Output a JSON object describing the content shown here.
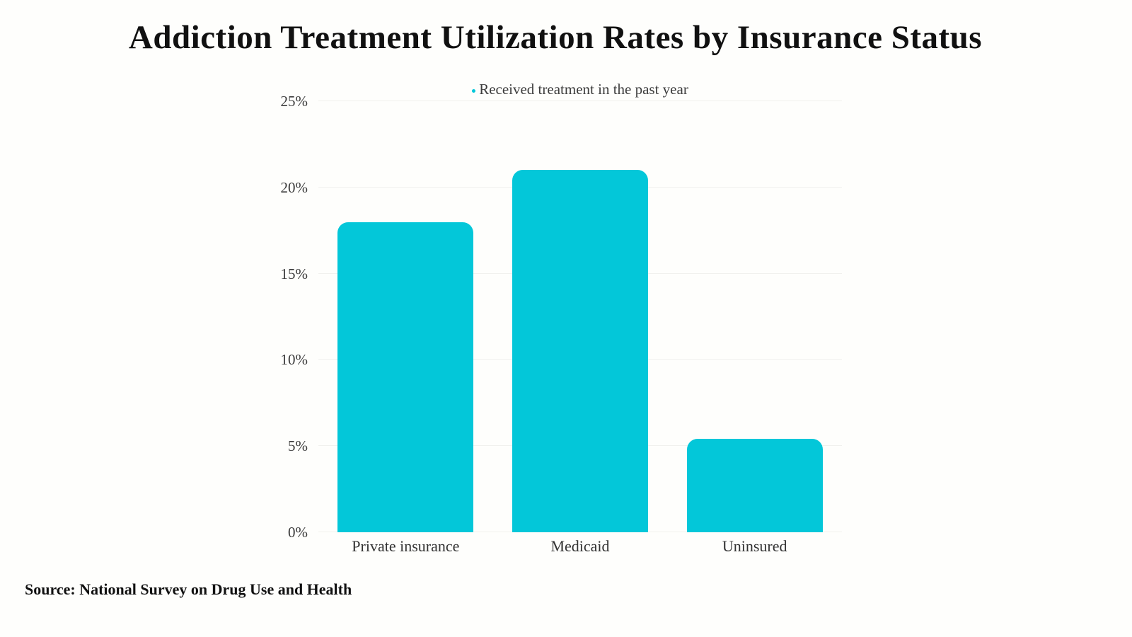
{
  "page": {
    "title": "Addiction Treatment Utilization Rates by Insurance Status",
    "source_note": "Source: National Survey on Drug Use and Health",
    "background_color": "#fefefc"
  },
  "legend": {
    "label": "Received treatment in the past year",
    "marker": "dot",
    "marker_color": "#03C7D9"
  },
  "chart_data": {
    "type": "bar",
    "title": "Addiction Treatment Utilization Rates by Insurance Status",
    "categories": [
      "Private insurance",
      "Medicaid",
      "Uninsured"
    ],
    "series": [
      {
        "name": "Received treatment in the past year",
        "values": [
          18,
          21,
          5.4
        ]
      }
    ],
    "unit": "%",
    "xlabel": "",
    "ylabel": "",
    "ylim": [
      0,
      25
    ],
    "ytick_values": [
      0,
      5,
      10,
      15,
      20,
      25
    ],
    "ytick_labels": [
      "0%",
      "5%",
      "10%",
      "15%",
      "20%",
      "25%"
    ],
    "grid": "horizontal",
    "gridline_color": "#f1f1ee",
    "legend_position": "top-center",
    "bar_color": "#03C7D9",
    "source": "Source: National Survey on Drug Use and Health"
  }
}
